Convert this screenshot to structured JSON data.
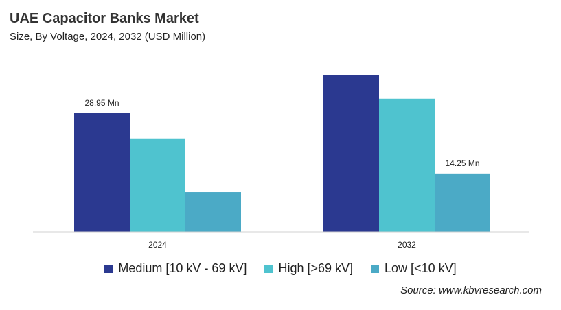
{
  "chart_data": {
    "type": "bar",
    "title": "UAE Capacitor Banks Market",
    "subtitle": "Size, By Voltage, 2024, 2032 (USD Million)",
    "categories": [
      "2024",
      "2032"
    ],
    "series": [
      {
        "name": "Medium [10 kV - 69 kV]",
        "values": [
          28.95,
          38.3
        ],
        "color": "#2B3990"
      },
      {
        "name": "High [>69 kV]",
        "values": [
          22.8,
          32.5
        ],
        "color": "#4FC3CF"
      },
      {
        "name": "Low [<10 kV]",
        "values": [
          9.7,
          14.25
        ],
        "color": "#4BAAC6"
      }
    ],
    "data_labels": [
      {
        "series": 0,
        "category": 0,
        "text": "28.95 Mn"
      },
      {
        "series": 2,
        "category": 1,
        "text": "14.25 Mn"
      }
    ],
    "ylim": [
      0,
      40
    ],
    "grid": false,
    "legend": "bottom",
    "source": "Source: www.kbvresearch.com"
  }
}
